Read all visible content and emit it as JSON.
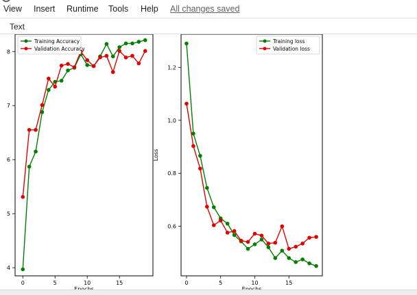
{
  "menu": {
    "items": [
      "View",
      "Insert",
      "Runtime",
      "Tools",
      "Help"
    ],
    "status": "All changes saved"
  },
  "toolbar": {
    "text_label": "Text"
  },
  "colors": {
    "training": "#008000",
    "validation": "#e00000"
  },
  "chart_data": [
    {
      "type": "line",
      "title": "",
      "xlabel": "Epochs",
      "ylabel": "",
      "xlim": [
        -1.2,
        20.2
      ],
      "ylim": [
        3.85,
        8.32
      ],
      "xticks": [
        0,
        5,
        10,
        15
      ],
      "yticks": [
        4,
        5,
        6,
        7,
        8
      ],
      "legend": "top-left",
      "grid": false,
      "x": [
        0,
        1,
        2,
        3,
        4,
        5,
        6,
        7,
        8,
        9,
        10,
        11,
        12,
        13,
        14,
        15,
        16,
        17,
        18,
        19
      ],
      "series": [
        {
          "name": "Training Accuracy",
          "color": "green",
          "values": [
            3.97,
            5.87,
            6.15,
            6.88,
            7.29,
            7.44,
            7.46,
            7.65,
            7.7,
            7.95,
            7.75,
            7.73,
            7.91,
            8.14,
            7.91,
            8.08,
            8.15,
            8.15,
            8.18,
            8.21
          ]
        },
        {
          "name": "Validation Accuracy",
          "color": "red",
          "values": [
            5.31,
            6.55,
            6.55,
            7.01,
            7.5,
            7.35,
            7.74,
            7.77,
            7.71,
            8.0,
            7.84,
            7.73,
            7.89,
            7.92,
            7.62,
            8.01,
            7.89,
            7.92,
            7.78,
            8.01
          ]
        }
      ]
    },
    {
      "type": "line",
      "title": "",
      "xlabel": "Epochs",
      "ylabel": "Loss",
      "xlim": [
        -0.8,
        19.9
      ],
      "ylim": [
        0.413,
        1.325
      ],
      "xticks": [
        0,
        5,
        10,
        15
      ],
      "yticks": [
        0.6,
        0.8,
        1.0,
        1.2
      ],
      "ytick_labels": [
        "0.6",
        "0.8",
        "1.0",
        "1.2"
      ],
      "legend": "top-right",
      "grid": false,
      "x": [
        0,
        1,
        2,
        3,
        4,
        5,
        6,
        7,
        8,
        9,
        10,
        11,
        12,
        13,
        14,
        15,
        16,
        17,
        18,
        19
      ],
      "series": [
        {
          "name": "Training loss",
          "color": "green",
          "values": [
            1.29,
            0.95,
            0.866,
            0.745,
            0.672,
            0.63,
            0.61,
            0.567,
            0.543,
            0.515,
            0.532,
            0.55,
            0.521,
            0.48,
            0.508,
            0.48,
            0.465,
            0.475,
            0.46,
            0.45
          ]
        },
        {
          "name": "Validation loss",
          "color": "red",
          "values": [
            1.063,
            0.903,
            0.818,
            0.674,
            0.604,
            0.622,
            0.576,
            0.582,
            0.546,
            0.541,
            0.572,
            0.565,
            0.535,
            0.538,
            0.6,
            0.515,
            0.523,
            0.535,
            0.557,
            0.56
          ]
        }
      ]
    }
  ]
}
